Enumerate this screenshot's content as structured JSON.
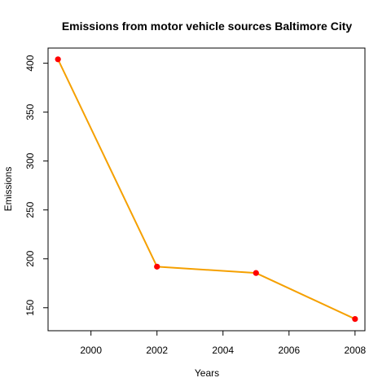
{
  "chart_data": {
    "type": "line",
    "title": "Emissions from motor vehicle sources Baltimore City",
    "xlabel": "Years",
    "ylabel": "Emissions",
    "x": [
      1999,
      2002,
      2005,
      2008
    ],
    "series": [
      {
        "values": [
          404,
          192,
          185.5,
          138.5
        ]
      }
    ],
    "xlim": [
      1998.7,
      2008.3
    ],
    "ylim": [
      126.5,
      415.5
    ],
    "x_ticks": [
      2000,
      2002,
      2004,
      2006,
      2008
    ],
    "y_ticks": [
      150,
      200,
      250,
      300,
      350,
      400
    ],
    "x_tick_labels": [
      "2000",
      "2002",
      "2004",
      "2006",
      "2008"
    ],
    "y_tick_labels": [
      "150",
      "200",
      "250",
      "300",
      "350",
      "400"
    ],
    "grid": false,
    "legend": "none",
    "colors": {
      "line": "#f5a000",
      "points": "#ff0000",
      "axis": "#000000"
    }
  }
}
